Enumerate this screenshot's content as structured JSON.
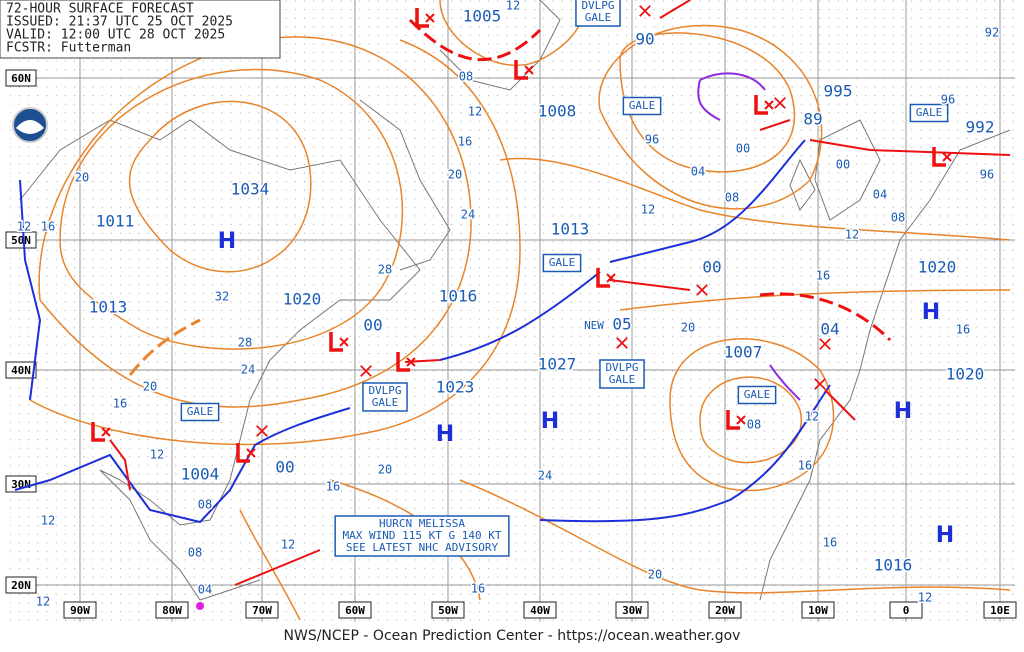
{
  "header": {
    "lines": [
      "72-HOUR SURFACE FORECAST",
      "ISSUED: 21:37 UTC 25 OCT 2025",
      "VALID: 12:00 UTC 28 OCT 2025",
      "FCSTR: Futterman"
    ]
  },
  "lat_labels": [
    "60N",
    "50N",
    "40N",
    "30N",
    "20N"
  ],
  "lon_labels": [
    "90W",
    "80W",
    "70W",
    "60W",
    "50W",
    "40W",
    "30W",
    "20W",
    "10W",
    "0",
    "10E"
  ],
  "pressure_labels": [
    "1005",
    "1008",
    "90",
    "995",
    "89",
    "992",
    "1034",
    "1011",
    "1013",
    "1020",
    "1016",
    "1013",
    "00",
    "00",
    "05",
    "1027",
    "1023",
    "1007",
    "04",
    "1020",
    "1020",
    "1004",
    "00",
    "1016"
  ],
  "high_labels": [
    "H",
    "H",
    "H",
    "H",
    "H",
    "H"
  ],
  "gale_labels": [
    "GALE",
    "GALE",
    "GALE",
    "GALE",
    "GALE"
  ],
  "developing_gale_labels": [
    [
      "DVLPG",
      "GALE"
    ],
    [
      "DVLPG",
      "GALE"
    ],
    [
      "DVLPG",
      "GALE"
    ]
  ],
  "hurricane_box": [
    "HURCN MELISSA",
    "MAX WIND 115 KT G 140 KT",
    "SEE LATEST NHC ADVISORY"
  ],
  "new_label": "NEW",
  "isobar_labels": [
    "08",
    "12",
    "16",
    "20",
    "24",
    "28",
    "32",
    "28",
    "24",
    "20",
    "16",
    "12",
    "08",
    "08",
    "04",
    "12",
    "16",
    "20",
    "24",
    "20",
    "16",
    "12",
    "12",
    "20",
    "12",
    "16",
    "96",
    "00",
    "04",
    "08",
    "12",
    "00",
    "04",
    "08",
    "12",
    "16",
    "20",
    "96",
    "96",
    "92",
    "12",
    "08",
    "12",
    "16",
    "16",
    "12",
    "16"
  ],
  "footer": "NWS/NCEP - Ocean Prediction Center - https://ocean.weather.gov"
}
